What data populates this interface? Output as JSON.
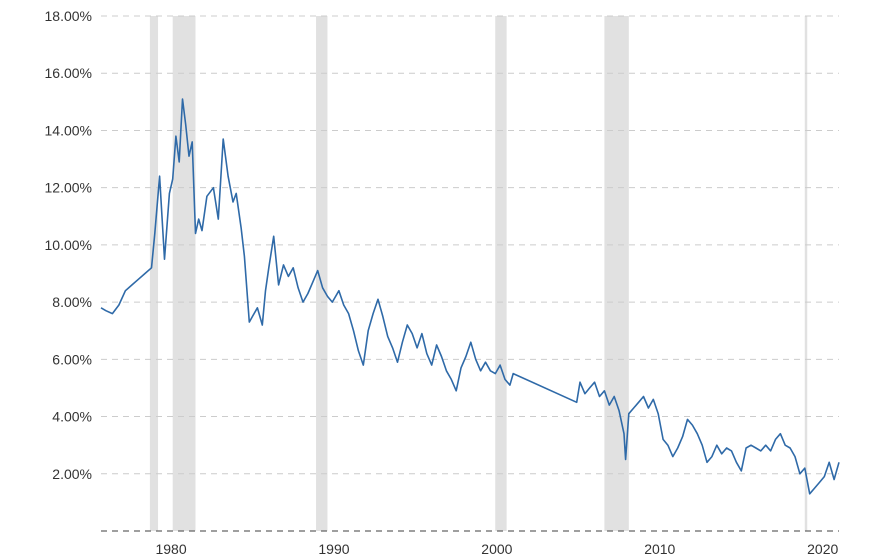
{
  "chart_data": {
    "type": "line",
    "title": "",
    "xlabel": "",
    "ylabel": "",
    "xlim": [
      1975.7,
      2021.0
    ],
    "ylim": [
      0,
      18
    ],
    "grid": true,
    "legend": "none",
    "colors": {
      "line": "#2f6aa8",
      "recession": "#e1e1e1",
      "grid": "#cccccc"
    },
    "y_ticks": [
      {
        "value": 2,
        "label": "2.00%"
      },
      {
        "value": 4,
        "label": "4.00%"
      },
      {
        "value": 6,
        "label": "6.00%"
      },
      {
        "value": 8,
        "label": "8.00%"
      },
      {
        "value": 10,
        "label": "10.00%"
      },
      {
        "value": 12,
        "label": "12.00%"
      },
      {
        "value": 14,
        "label": "14.00%"
      },
      {
        "value": 16,
        "label": "16.00%"
      },
      {
        "value": 18,
        "label": "18.00%"
      }
    ],
    "x_ticks": [
      {
        "value": 1980,
        "label": "1980"
      },
      {
        "value": 1990,
        "label": "1990"
      },
      {
        "value": 2000,
        "label": "2000"
      },
      {
        "value": 2010,
        "label": "2010"
      },
      {
        "value": 2020,
        "label": "2020"
      }
    ],
    "recessions": [
      [
        1978.7,
        1979.2
      ],
      [
        1980.1,
        1981.5
      ],
      [
        1988.9,
        1989.6
      ],
      [
        1999.9,
        2000.6
      ],
      [
        2006.6,
        2008.1
      ],
      [
        2018.9,
        2019.05
      ]
    ],
    "series": [
      {
        "x": [
          1975.7,
          1976.0,
          1976.4,
          1976.8,
          1977.2,
          1977.6,
          1978.0,
          1978.4,
          1978.8,
          1979.0,
          1979.3,
          1979.6,
          1979.9,
          1980.1,
          1980.3,
          1980.5,
          1980.7,
          1980.9,
          1981.1,
          1981.3,
          1981.5,
          1981.7,
          1981.9,
          1982.2,
          1982.6,
          1982.9,
          1983.2,
          1983.5,
          1983.8,
          1984.0,
          1984.3,
          1984.5,
          1984.8,
          1985.0,
          1985.3,
          1985.6,
          1985.8,
          1986.0,
          1986.3,
          1986.6,
          1986.9,
          1987.2,
          1987.5,
          1987.8,
          1988.1,
          1988.4,
          1988.7,
          1989.0,
          1989.3,
          1989.6,
          1989.9,
          1990.3,
          1990.6,
          1990.9,
          1991.2,
          1991.5,
          1991.8,
          1992.1,
          1992.4,
          1992.7,
          1993.0,
          1993.3,
          1993.6,
          1993.9,
          1994.2,
          1994.5,
          1994.8,
          1995.1,
          1995.4,
          1995.7,
          1996.0,
          1996.3,
          1996.6,
          1996.9,
          1997.2,
          1997.5,
          1997.8,
          1998.1,
          1998.4,
          1998.7,
          1999.0,
          1999.3,
          1999.6,
          1999.9,
          2000.2,
          2000.5,
          2000.8,
          2001.0,
          2004.9,
          2005.1,
          2005.4,
          2005.7,
          2006.0,
          2006.3,
          2006.6,
          2006.9,
          2007.2,
          2007.5,
          2007.8,
          2007.9,
          2008.1,
          2008.4,
          2008.7,
          2009.0,
          2009.3,
          2009.6,
          2009.9,
          2010.2,
          2010.5,
          2010.8,
          2011.1,
          2011.4,
          2011.7,
          2012.0,
          2012.3,
          2012.6,
          2012.9,
          2013.2,
          2013.5,
          2013.8,
          2014.1,
          2014.4,
          2014.7,
          2015.0,
          2015.3,
          2015.6,
          2015.9,
          2016.2,
          2016.5,
          2016.8,
          2017.1,
          2017.4,
          2017.7,
          2018.0,
          2018.3,
          2018.6,
          2018.9,
          2019.2,
          2019.5,
          2019.8,
          2020.1,
          2020.4,
          2020.7,
          2021.0
        ],
        "values": [
          7.8,
          7.7,
          7.6,
          7.9,
          8.4,
          8.6,
          8.8,
          9.0,
          9.2,
          10.4,
          12.4,
          9.5,
          11.8,
          12.3,
          13.8,
          12.9,
          15.1,
          14.2,
          13.1,
          13.6,
          10.4,
          10.9,
          10.5,
          11.7,
          12.0,
          10.9,
          13.7,
          12.4,
          11.5,
          11.8,
          10.6,
          9.6,
          7.3,
          7.5,
          7.8,
          7.2,
          8.4,
          9.2,
          10.3,
          8.6,
          9.3,
          8.9,
          9.2,
          8.5,
          8.0,
          8.3,
          8.7,
          9.1,
          8.5,
          8.2,
          8.0,
          8.4,
          7.9,
          7.6,
          7.0,
          6.3,
          5.8,
          7.0,
          7.6,
          8.1,
          7.5,
          6.8,
          6.4,
          5.9,
          6.6,
          7.2,
          6.9,
          6.4,
          6.9,
          6.2,
          5.8,
          6.5,
          6.1,
          5.6,
          5.3,
          4.9,
          5.7,
          6.1,
          6.6,
          6.0,
          5.6,
          5.9,
          5.6,
          5.5,
          5.8,
          5.3,
          5.1,
          5.5,
          4.5,
          5.2,
          4.8,
          5.0,
          5.2,
          4.7,
          4.9,
          4.4,
          4.7,
          4.2,
          3.4,
          2.5,
          4.1,
          4.3,
          4.5,
          4.7,
          4.3,
          4.6,
          4.1,
          3.2,
          3.0,
          2.6,
          2.9,
          3.3,
          3.9,
          3.7,
          3.4,
          3.0,
          2.4,
          2.6,
          3.0,
          2.7,
          2.9,
          2.8,
          2.4,
          2.1,
          2.9,
          3.0,
          2.9,
          2.8,
          3.0,
          2.8,
          3.2,
          3.4,
          3.0,
          2.9,
          2.6,
          2.0,
          2.2,
          1.3,
          1.5,
          1.7,
          1.9,
          2.4,
          1.8,
          2.4
        ]
      }
    ]
  }
}
